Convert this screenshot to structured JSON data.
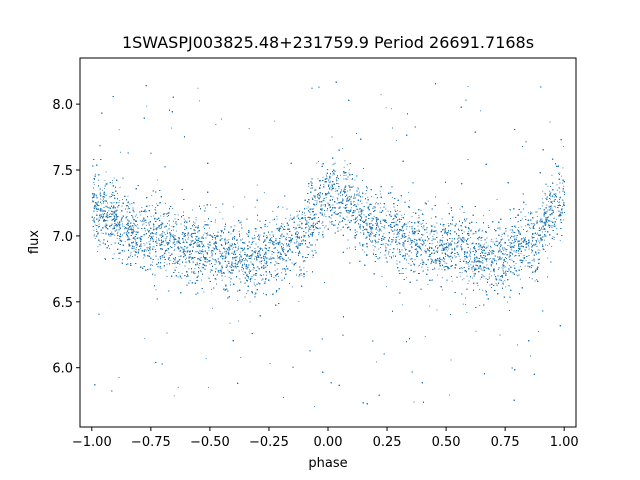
{
  "chart_data": {
    "type": "scatter",
    "title": "1SWASPJ003825.48+231759.9 Period 26691.7168s",
    "xlabel": "phase",
    "ylabel": "flux",
    "xlim": [
      -1.05,
      1.05
    ],
    "ylim": [
      5.55,
      8.35
    ],
    "xticks": [
      -1.0,
      -0.75,
      -0.5,
      -0.25,
      0.0,
      0.25,
      0.5,
      0.75,
      1.0
    ],
    "xtick_labels": [
      "−1.00",
      "−0.75",
      "−0.50",
      "−0.25",
      "0.00",
      "0.25",
      "0.50",
      "0.75",
      "1.00"
    ],
    "yticks": [
      6.0,
      6.5,
      7.0,
      7.5,
      8.0
    ],
    "ytick_labels": [
      "6.0",
      "6.5",
      "7.0",
      "7.5",
      "8.0"
    ],
    "point_color": "#1f77b4",
    "grid": false,
    "series": [
      {
        "description_of_trend": [
          {
            "phase": -1.0,
            "flux": 7.2
          },
          {
            "phase": -0.75,
            "flux": 7.0
          },
          {
            "phase": -0.5,
            "flux": 6.88
          },
          {
            "phase": -0.3,
            "flux": 6.82
          },
          {
            "phase": -0.15,
            "flux": 6.95
          },
          {
            "phase": 0.0,
            "flux": 7.3
          },
          {
            "phase": 0.25,
            "flux": 7.05
          },
          {
            "phase": 0.5,
            "flux": 6.9
          },
          {
            "phase": 0.7,
            "flux": 6.82
          },
          {
            "phase": 0.85,
            "flux": 6.95
          },
          {
            "phase": 1.0,
            "flux": 7.3
          }
        ],
        "scatter_halfwidth": 0.25,
        "num_points": 24000,
        "outlier_range": [
          5.7,
          8.2
        ]
      }
    ]
  }
}
